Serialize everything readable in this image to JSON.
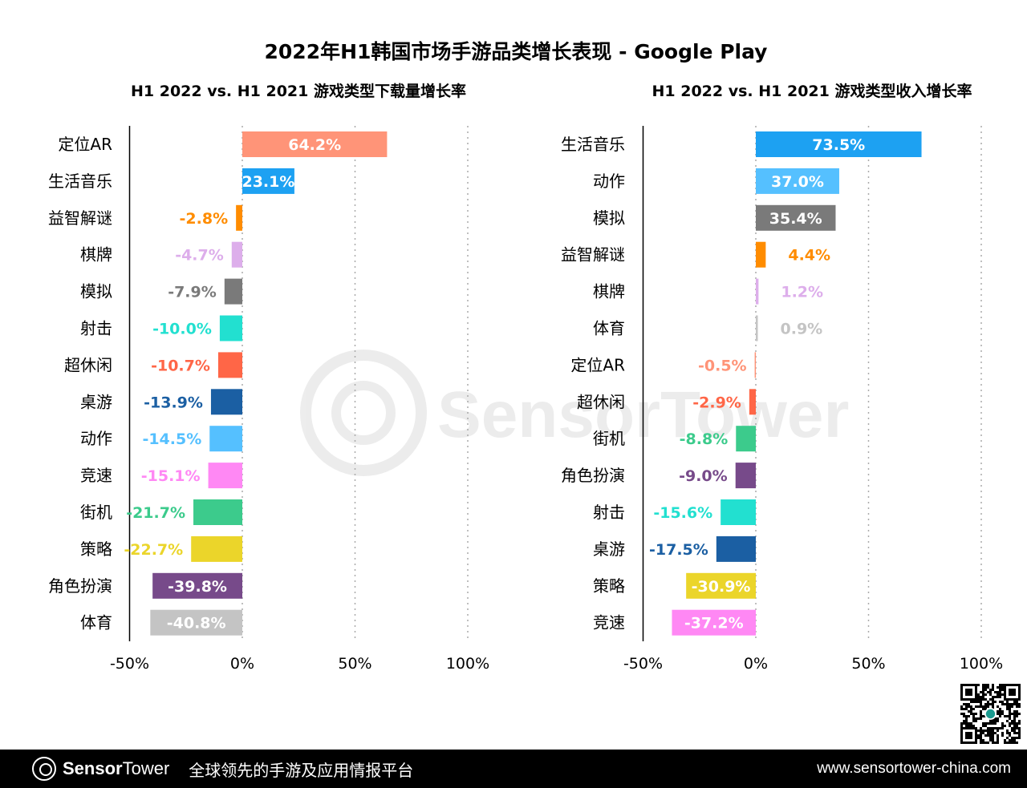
{
  "title": "2022年H1韩国市场手游品类增长表现 - Google Play",
  "footer": {
    "brand_bold": "Sensor",
    "brand_light": "Tower",
    "slogan": "全球领先的手游及应用情报平台",
    "url": "www.sensortower-china.com"
  },
  "watermark": "SensorTower",
  "chart_data": [
    {
      "type": "bar",
      "orientation": "horizontal",
      "title": "H1 2022 vs. H1 2021 游戏类型下载量增长率",
      "xlim": [
        -50,
        100
      ],
      "ticks": [
        -50,
        0,
        50,
        100
      ],
      "tick_labels": [
        "-50%",
        "0%",
        "50%",
        "100%"
      ],
      "grid": "vertical dotted",
      "categories": [
        "定位AR",
        "生活音乐",
        "益智解谜",
        "棋牌",
        "模拟",
        "射击",
        "超休闲",
        "桌游",
        "动作",
        "竞速",
        "街机",
        "策略",
        "角色扮演",
        "体育"
      ],
      "values": [
        64.2,
        23.1,
        -2.8,
        -4.7,
        -7.9,
        -10.0,
        -10.7,
        -13.9,
        -14.5,
        -15.1,
        -21.7,
        -22.7,
        -39.8,
        -40.8
      ],
      "labels": [
        "64.2%",
        "23.1%",
        "-2.8%",
        "-4.7%",
        "-7.9%",
        "-10.0%",
        "-10.7%",
        "-13.9%",
        "-14.5%",
        "-15.1%",
        "-21.7%",
        "-22.7%",
        "-39.8%",
        "-40.8%"
      ],
      "colors": [
        "#FF9478",
        "#1DA1F2",
        "#FF8C00",
        "#DDAEEB",
        "#7A7A7A",
        "#22E0D0",
        "#FF6647",
        "#1B5FA3",
        "#55C0FF",
        "#FF88F4",
        "#3CCB8C",
        "#EBD52A",
        "#774A8A",
        "#C4C4C4"
      ]
    },
    {
      "type": "bar",
      "orientation": "horizontal",
      "title": "H1 2022 vs. H1 2021 游戏类型收入增长率",
      "xlim": [
        -50,
        100
      ],
      "ticks": [
        -50,
        0,
        50,
        100
      ],
      "tick_labels": [
        "-50%",
        "0%",
        "50%",
        "100%"
      ],
      "grid": "vertical dotted",
      "categories": [
        "生活音乐",
        "动作",
        "模拟",
        "益智解谜",
        "棋牌",
        "体育",
        "定位AR",
        "超休闲",
        "街机",
        "角色扮演",
        "射击",
        "桌游",
        "策略",
        "竞速"
      ],
      "values": [
        73.5,
        37.0,
        35.4,
        4.4,
        1.2,
        0.9,
        -0.5,
        -2.9,
        -8.8,
        -9.0,
        -15.6,
        -17.5,
        -30.9,
        -37.2
      ],
      "labels": [
        "73.5%",
        "37.0%",
        "35.4%",
        "4.4%",
        "1.2%",
        "0.9%",
        "-0.5%",
        "-2.9%",
        "-8.8%",
        "-9.0%",
        "-15.6%",
        "-17.5%",
        "-30.9%",
        "-37.2%"
      ],
      "colors": [
        "#1DA1F2",
        "#55C0FF",
        "#7A7A7A",
        "#FF8C00",
        "#DDAEEB",
        "#C4C4C4",
        "#FF9478",
        "#FF6647",
        "#3CCB8C",
        "#774A8A",
        "#22E0D0",
        "#1B5FA3",
        "#EBD52A",
        "#FF88F4"
      ]
    }
  ]
}
